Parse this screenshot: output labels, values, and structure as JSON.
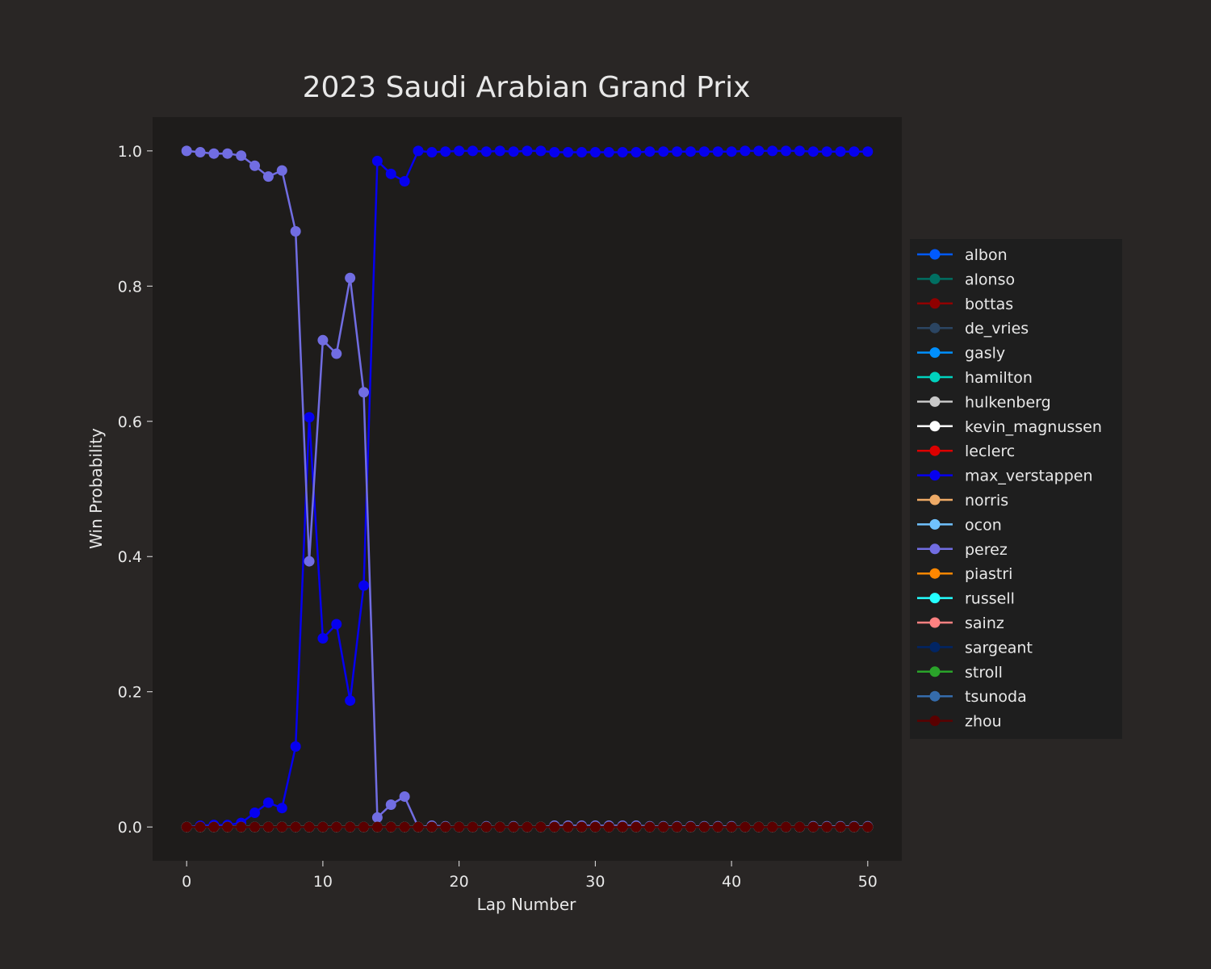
{
  "colors": {
    "figure_bg": "#292625",
    "axes_bg": "#1e1c1b",
    "legend_bg": "#1e1e1e",
    "text": "#e8e8e8"
  },
  "chart_data": {
    "type": "line",
    "title": "2023 Saudi Arabian Grand Prix",
    "xlabel": "Lap Number",
    "ylabel": "Win Probability",
    "xlim": [
      -2.5,
      52.5
    ],
    "ylim": [
      -0.05,
      1.05
    ],
    "xticks": [
      0,
      10,
      20,
      30,
      40,
      50
    ],
    "xtick_labels": [
      "0",
      "10",
      "20",
      "30",
      "40",
      "50"
    ],
    "yticks": [
      0,
      0.2,
      0.4,
      0.6,
      0.8,
      1.0
    ],
    "ytick_labels": [
      "0.0",
      "0.2",
      "0.4",
      "0.6",
      "0.8",
      "1.0"
    ],
    "grid": false,
    "legend_position": "right",
    "x": [
      0,
      1,
      2,
      3,
      4,
      5,
      6,
      7,
      8,
      9,
      10,
      11,
      12,
      13,
      14,
      15,
      16,
      17,
      18,
      19,
      20,
      21,
      22,
      23,
      24,
      25,
      26,
      27,
      28,
      29,
      30,
      31,
      32,
      33,
      34,
      35,
      36,
      37,
      38,
      39,
      40,
      41,
      42,
      43,
      44,
      45,
      46,
      47,
      48,
      49,
      50
    ],
    "series": [
      {
        "name": "albon",
        "color": "#005aff",
        "values": [
          0,
          0,
          0,
          0,
          0,
          0,
          0,
          0,
          0,
          0,
          0,
          0,
          0,
          0,
          0,
          0,
          0,
          0,
          0,
          0,
          0,
          0,
          0,
          0,
          0,
          0,
          0,
          0,
          0,
          0,
          0,
          0,
          0,
          0,
          0,
          0,
          0,
          0,
          0,
          0,
          0,
          0,
          0,
          0,
          0,
          0,
          0,
          0,
          0,
          0,
          0
        ]
      },
      {
        "name": "alonso",
        "color": "#006f62",
        "values": [
          0,
          0,
          0,
          0,
          0,
          0,
          0,
          0,
          0,
          0,
          0,
          0,
          0,
          0,
          0,
          0,
          0,
          0,
          0,
          0,
          0,
          0,
          0,
          0,
          0,
          0,
          0,
          0,
          0,
          0,
          0,
          0,
          0,
          0,
          0,
          0,
          0,
          0,
          0,
          0,
          0,
          0,
          0,
          0,
          0,
          0,
          0,
          0,
          0,
          0,
          0
        ]
      },
      {
        "name": "bottas",
        "color": "#900000",
        "values": [
          0,
          0,
          0,
          0,
          0,
          0,
          0,
          0,
          0,
          0,
          0,
          0,
          0,
          0,
          0,
          0,
          0,
          0,
          0,
          0,
          0,
          0,
          0,
          0,
          0,
          0,
          0,
          0,
          0,
          0,
          0,
          0,
          0,
          0,
          0,
          0,
          0,
          0,
          0,
          0,
          0,
          0,
          0,
          0,
          0,
          0,
          0,
          0,
          0,
          0,
          0
        ]
      },
      {
        "name": "de_vries",
        "color": "#2b4562",
        "values": [
          0,
          0,
          0,
          0,
          0,
          0,
          0,
          0,
          0,
          0,
          0,
          0,
          0,
          0,
          0,
          0,
          0,
          0,
          0,
          0,
          0,
          0,
          0,
          0,
          0,
          0,
          0,
          0,
          0,
          0,
          0,
          0,
          0,
          0,
          0,
          0,
          0,
          0,
          0,
          0,
          0,
          0,
          0,
          0,
          0,
          0,
          0,
          0,
          0,
          0,
          0
        ]
      },
      {
        "name": "gasly",
        "color": "#0090ff",
        "values": [
          0,
          0,
          0,
          0,
          0,
          0,
          0,
          0,
          0,
          0,
          0,
          0,
          0,
          0,
          0,
          0,
          0,
          0,
          0,
          0,
          0,
          0,
          0,
          0,
          0,
          0,
          0,
          0,
          0,
          0,
          0,
          0,
          0,
          0,
          0,
          0,
          0,
          0,
          0,
          0,
          0,
          0,
          0,
          0,
          0,
          0,
          0,
          0,
          0,
          0,
          0
        ]
      },
      {
        "name": "hamilton",
        "color": "#00d2be",
        "values": [
          0,
          0,
          0,
          0,
          0,
          0,
          0,
          0,
          0,
          0,
          0,
          0,
          0,
          0,
          0,
          0,
          0,
          0,
          0,
          0,
          0,
          0,
          0,
          0,
          0,
          0,
          0,
          0,
          0,
          0,
          0,
          0,
          0,
          0,
          0,
          0,
          0,
          0,
          0,
          0,
          0,
          0,
          0,
          0,
          0,
          0,
          0,
          0,
          0,
          0,
          0
        ]
      },
      {
        "name": "hulkenberg",
        "color": "#c8c8c8",
        "values": [
          0,
          0,
          0,
          0,
          0,
          0,
          0,
          0,
          0,
          0,
          0,
          0,
          0,
          0,
          0,
          0,
          0,
          0,
          0,
          0,
          0,
          0,
          0,
          0,
          0,
          0,
          0,
          0,
          0,
          0,
          0,
          0,
          0,
          0,
          0,
          0,
          0,
          0,
          0,
          0,
          0,
          0,
          0,
          0,
          0,
          0,
          0,
          0,
          0,
          0,
          0
        ]
      },
      {
        "name": "kevin_magnussen",
        "color": "#ffffff",
        "values": [
          0,
          0,
          0,
          0,
          0,
          0,
          0,
          0,
          0,
          0,
          0,
          0,
          0,
          0,
          0,
          0,
          0,
          0,
          0,
          0,
          0,
          0,
          0,
          0,
          0,
          0,
          0,
          0,
          0,
          0,
          0,
          0,
          0,
          0,
          0,
          0,
          0,
          0,
          0,
          0,
          0,
          0,
          0,
          0,
          0,
          0,
          0,
          0,
          0,
          0,
          0
        ]
      },
      {
        "name": "leclerc",
        "color": "#dc0000",
        "values": [
          0,
          0,
          0,
          0,
          0,
          0,
          0,
          0,
          0,
          0,
          0,
          0,
          0,
          0,
          0,
          0,
          0,
          0,
          0,
          0,
          0,
          0,
          0,
          0,
          0,
          0,
          0,
          0,
          0,
          0,
          0,
          0,
          0,
          0,
          0,
          0,
          0,
          0,
          0,
          0,
          0,
          0,
          0,
          0,
          0,
          0,
          0,
          0,
          0,
          0,
          0
        ]
      },
      {
        "name": "max_verstappen",
        "color": "#0600ef",
        "values": [
          0,
          0.002,
          0.003,
          0.003,
          0.006,
          0.021,
          0.036,
          0.028,
          0.119,
          0.606,
          0.279,
          0.3,
          0.187,
          0.357,
          0.985,
          0.966,
          0.955,
          1.0,
          0.998,
          0.999,
          1.0,
          1.0,
          0.999,
          1.0,
          0.999,
          1.0,
          1.0,
          0.998,
          0.998,
          0.998,
          0.998,
          0.998,
          0.998,
          0.998,
          0.999,
          0.999,
          0.999,
          0.999,
          0.999,
          0.999,
          0.999,
          1.0,
          1.0,
          1.0,
          1.0,
          1.0,
          0.999,
          0.999,
          0.999,
          0.999,
          0.999
        ]
      },
      {
        "name": "norris",
        "color": "#eeaa66",
        "values": [
          0,
          0,
          0,
          0,
          0,
          0,
          0,
          0,
          0,
          0,
          0,
          0,
          0,
          0,
          0,
          0,
          0,
          0,
          0,
          0,
          0,
          0,
          0,
          0,
          0,
          0,
          0,
          0,
          0,
          0,
          0,
          0,
          0,
          0,
          0,
          0,
          0,
          0,
          0,
          0,
          0,
          0,
          0,
          0,
          0,
          0,
          0,
          0,
          0,
          0,
          0
        ]
      },
      {
        "name": "ocon",
        "color": "#70c2ff",
        "values": [
          0,
          0,
          0,
          0,
          0,
          0,
          0,
          0,
          0,
          0,
          0,
          0,
          0,
          0,
          0,
          0,
          0,
          0,
          0,
          0,
          0,
          0,
          0,
          0,
          0,
          0,
          0,
          0,
          0,
          0,
          0,
          0,
          0,
          0,
          0,
          0,
          0,
          0,
          0,
          0,
          0,
          0,
          0,
          0,
          0,
          0,
          0,
          0,
          0,
          0,
          0
        ]
      },
      {
        "name": "perez",
        "color": "#716de2",
        "values": [
          1.0,
          0.998,
          0.996,
          0.996,
          0.993,
          0.978,
          0.962,
          0.971,
          0.881,
          0.393,
          0.72,
          0.7,
          0.812,
          0.643,
          0.014,
          0.033,
          0.045,
          0,
          0.002,
          0.001,
          0,
          0,
          0.001,
          0,
          0.001,
          0,
          0,
          0.002,
          0.002,
          0.002,
          0.002,
          0.002,
          0.002,
          0.002,
          0.001,
          0.001,
          0.001,
          0.001,
          0.001,
          0.001,
          0.001,
          0,
          0,
          0,
          0,
          0,
          0.001,
          0.001,
          0.001,
          0.001,
          0.001
        ]
      },
      {
        "name": "piastri",
        "color": "#ff8700",
        "values": [
          0,
          0,
          0,
          0,
          0,
          0,
          0,
          0,
          0,
          0,
          0,
          0,
          0,
          0,
          0,
          0,
          0,
          0,
          0,
          0,
          0,
          0,
          0,
          0,
          0,
          0,
          0,
          0,
          0,
          0,
          0,
          0,
          0,
          0,
          0,
          0,
          0,
          0,
          0,
          0,
          0,
          0,
          0,
          0,
          0,
          0,
          0,
          0,
          0,
          0,
          0
        ]
      },
      {
        "name": "russell",
        "color": "#24ffff",
        "values": [
          0,
          0,
          0,
          0,
          0,
          0,
          0,
          0,
          0,
          0,
          0,
          0,
          0,
          0,
          0,
          0,
          0,
          0,
          0,
          0,
          0,
          0,
          0,
          0,
          0,
          0,
          0,
          0,
          0,
          0,
          0,
          0,
          0,
          0,
          0,
          0,
          0,
          0,
          0,
          0,
          0,
          0,
          0,
          0,
          0,
          0,
          0,
          0,
          0,
          0,
          0
        ]
      },
      {
        "name": "sainz",
        "color": "#ff8181",
        "values": [
          0,
          0,
          0,
          0,
          0,
          0,
          0,
          0,
          0,
          0,
          0,
          0,
          0,
          0,
          0,
          0,
          0,
          0,
          0,
          0,
          0,
          0,
          0,
          0,
          0,
          0,
          0,
          0,
          0,
          0,
          0,
          0,
          0,
          0,
          0,
          0,
          0,
          0,
          0,
          0,
          0,
          0,
          0,
          0,
          0,
          0,
          0,
          0,
          0,
          0,
          0
        ]
      },
      {
        "name": "sargeant",
        "color": "#012564",
        "values": [
          0,
          0,
          0,
          0,
          0,
          0,
          0,
          0,
          0,
          0,
          0,
          0,
          0,
          0,
          0,
          0,
          0,
          0,
          0,
          0,
          0,
          0,
          0,
          0,
          0,
          0,
          0,
          0,
          0,
          0,
          0,
          0,
          0,
          0,
          0,
          0,
          0,
          0,
          0,
          0,
          0,
          0,
          0,
          0,
          0,
          0,
          0,
          0,
          0,
          0,
          0
        ]
      },
      {
        "name": "stroll",
        "color": "#2aa32a",
        "values": [
          0,
          0,
          0,
          0,
          0,
          0,
          0,
          0,
          0,
          0,
          0,
          0,
          0,
          0,
          0,
          0,
          0,
          0,
          0,
          0,
          0,
          0,
          0,
          0,
          0,
          0,
          0,
          0,
          0,
          0,
          0,
          0,
          0,
          0,
          0,
          0,
          0,
          0,
          0,
          0,
          0,
          0,
          0,
          0,
          0,
          0,
          0,
          0,
          0,
          0,
          0
        ]
      },
      {
        "name": "tsunoda",
        "color": "#356cac",
        "values": [
          0,
          0,
          0,
          0,
          0,
          0,
          0,
          0,
          0,
          0,
          0,
          0,
          0,
          0,
          0,
          0,
          0,
          0,
          0,
          0,
          0,
          0,
          0,
          0,
          0,
          0,
          0,
          0,
          0,
          0,
          0,
          0,
          0,
          0,
          0,
          0,
          0,
          0,
          0,
          0,
          0,
          0,
          0,
          0,
          0,
          0,
          0,
          0,
          0,
          0,
          0
        ]
      },
      {
        "name": "zhou",
        "color": "#5a0000",
        "values": [
          0,
          0,
          0,
          0,
          0,
          0,
          0,
          0,
          0,
          0,
          0,
          0,
          0,
          0,
          0,
          0,
          0,
          0,
          0,
          0,
          0,
          0,
          0,
          0,
          0,
          0,
          0,
          0,
          0,
          0,
          0,
          0,
          0,
          0,
          0,
          0,
          0,
          0,
          0,
          0,
          0,
          0,
          0,
          0,
          0,
          0,
          0,
          0,
          0,
          0,
          0
        ]
      }
    ]
  }
}
